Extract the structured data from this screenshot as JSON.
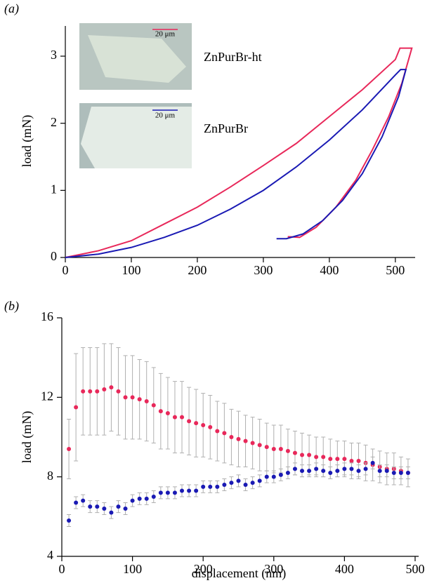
{
  "chart_data": [
    {
      "type": "line",
      "panel_label": "(a)",
      "ylabel": "load (mN)",
      "xlim": [
        0,
        530
      ],
      "ylim": [
        0,
        3.45
      ],
      "xticks": [
        0,
        100,
        200,
        300,
        400,
        500
      ],
      "yticks": [
        0,
        1,
        2,
        3
      ],
      "insets": [
        {
          "label": "20 μm"
        },
        {
          "label": "20 μm"
        }
      ],
      "series": [
        {
          "name": "ZnPurBr-ht",
          "color": "#e8285a",
          "x": [
            0,
            50,
            100,
            150,
            200,
            250,
            300,
            350,
            400,
            450,
            500,
            507,
            525,
            510,
            490,
            465,
            440,
            410,
            380,
            355,
            337
          ],
          "values": [
            0,
            0.1,
            0.25,
            0.5,
            0.75,
            1.05,
            1.37,
            1.7,
            2.1,
            2.5,
            2.95,
            3.12,
            3.12,
            2.6,
            2.1,
            1.6,
            1.15,
            0.75,
            0.45,
            0.3,
            0.31
          ]
        },
        {
          "name": "ZnPurBr",
          "color": "#1a1ab4",
          "x": [
            0,
            50,
            100,
            150,
            200,
            250,
            300,
            350,
            400,
            450,
            500,
            508,
            516,
            505,
            480,
            450,
            420,
            390,
            360,
            335,
            320
          ],
          "values": [
            0,
            0.05,
            0.15,
            0.3,
            0.48,
            0.72,
            1.0,
            1.35,
            1.75,
            2.2,
            2.72,
            2.8,
            2.8,
            2.4,
            1.8,
            1.25,
            0.85,
            0.55,
            0.35,
            0.28,
            0.28
          ]
        }
      ]
    },
    {
      "type": "scatter",
      "panel_label": "(b)",
      "xlabel": "displacement (nm)",
      "ylabel": "load (mN)",
      "xlim": [
        0,
        505
      ],
      "ylim": [
        4,
        16
      ],
      "xticks": [
        0,
        100,
        200,
        300,
        400,
        500
      ],
      "yticks": [
        4,
        8,
        12,
        16
      ],
      "series": [
        {
          "name": "ZnPurBr-ht",
          "color": "#e8285a",
          "x": [
            10,
            20,
            30,
            40,
            50,
            60,
            70,
            80,
            90,
            100,
            110,
            120,
            130,
            140,
            150,
            160,
            170,
            180,
            190,
            200,
            210,
            220,
            230,
            240,
            250,
            260,
            270,
            280,
            290,
            300,
            310,
            320,
            330,
            340,
            350,
            360,
            370,
            380,
            390,
            400,
            410,
            420,
            430,
            440,
            450,
            460,
            470,
            480,
            490
          ],
          "values": [
            9.4,
            11.5,
            12.3,
            12.3,
            12.3,
            12.4,
            12.5,
            12.3,
            12.0,
            12.0,
            11.9,
            11.8,
            11.6,
            11.3,
            11.2,
            11.0,
            11.0,
            10.8,
            10.7,
            10.6,
            10.5,
            10.3,
            10.2,
            10.0,
            9.9,
            9.8,
            9.7,
            9.6,
            9.5,
            9.4,
            9.4,
            9.3,
            9.2,
            9.1,
            9.1,
            9.0,
            9.0,
            8.9,
            8.9,
            8.9,
            8.8,
            8.8,
            8.7,
            8.6,
            8.5,
            8.4,
            8.4,
            8.3,
            8.2
          ],
          "errors": [
            1.5,
            2.7,
            2.2,
            2.2,
            2.2,
            2.3,
            2.2,
            2.2,
            2.1,
            2.1,
            2.0,
            2.0,
            1.9,
            1.9,
            1.8,
            1.8,
            1.8,
            1.7,
            1.7,
            1.6,
            1.6,
            1.5,
            1.5,
            1.4,
            1.4,
            1.3,
            1.3,
            1.3,
            1.2,
            1.2,
            1.2,
            1.1,
            1.1,
            1.1,
            1.0,
            1.0,
            1.0,
            1.0,
            0.9,
            0.9,
            0.9,
            0.9,
            0.9,
            0.8,
            0.8,
            0.8,
            0.8,
            0.7,
            0.7
          ]
        },
        {
          "name": "ZnPurBr",
          "color": "#1a1ab4",
          "x": [
            10,
            20,
            30,
            40,
            50,
            60,
            70,
            80,
            90,
            100,
            110,
            120,
            130,
            140,
            150,
            160,
            170,
            180,
            190,
            200,
            210,
            220,
            230,
            240,
            250,
            260,
            270,
            280,
            290,
            300,
            310,
            320,
            330,
            340,
            350,
            360,
            370,
            380,
            390,
            400,
            410,
            420,
            430,
            440,
            450,
            460,
            470,
            480,
            490
          ],
          "values": [
            5.8,
            6.7,
            6.8,
            6.5,
            6.5,
            6.4,
            6.2,
            6.5,
            6.4,
            6.8,
            6.9,
            6.9,
            7.0,
            7.2,
            7.2,
            7.2,
            7.3,
            7.3,
            7.3,
            7.5,
            7.5,
            7.5,
            7.6,
            7.7,
            7.8,
            7.6,
            7.7,
            7.8,
            8.0,
            8.0,
            8.1,
            8.2,
            8.4,
            8.3,
            8.3,
            8.4,
            8.3,
            8.2,
            8.3,
            8.4,
            8.4,
            8.3,
            8.4,
            8.7,
            8.3,
            8.3,
            8.2,
            8.2,
            8.2
          ],
          "errors": [
            0.3,
            0.3,
            0.3,
            0.3,
            0.3,
            0.3,
            0.3,
            0.3,
            0.3,
            0.3,
            0.3,
            0.3,
            0.3,
            0.3,
            0.3,
            0.3,
            0.3,
            0.3,
            0.3,
            0.3,
            0.3,
            0.3,
            0.3,
            0.3,
            0.3,
            0.3,
            0.3,
            0.3,
            0.3,
            0.3,
            0.3,
            0.3,
            0.3,
            0.3,
            0.3,
            0.3,
            0.3,
            0.3,
            0.3,
            0.3,
            0.3,
            0.3,
            0.3,
            0.3,
            0.3,
            0.3,
            0.3,
            0.3,
            0.3
          ]
        }
      ]
    }
  ]
}
